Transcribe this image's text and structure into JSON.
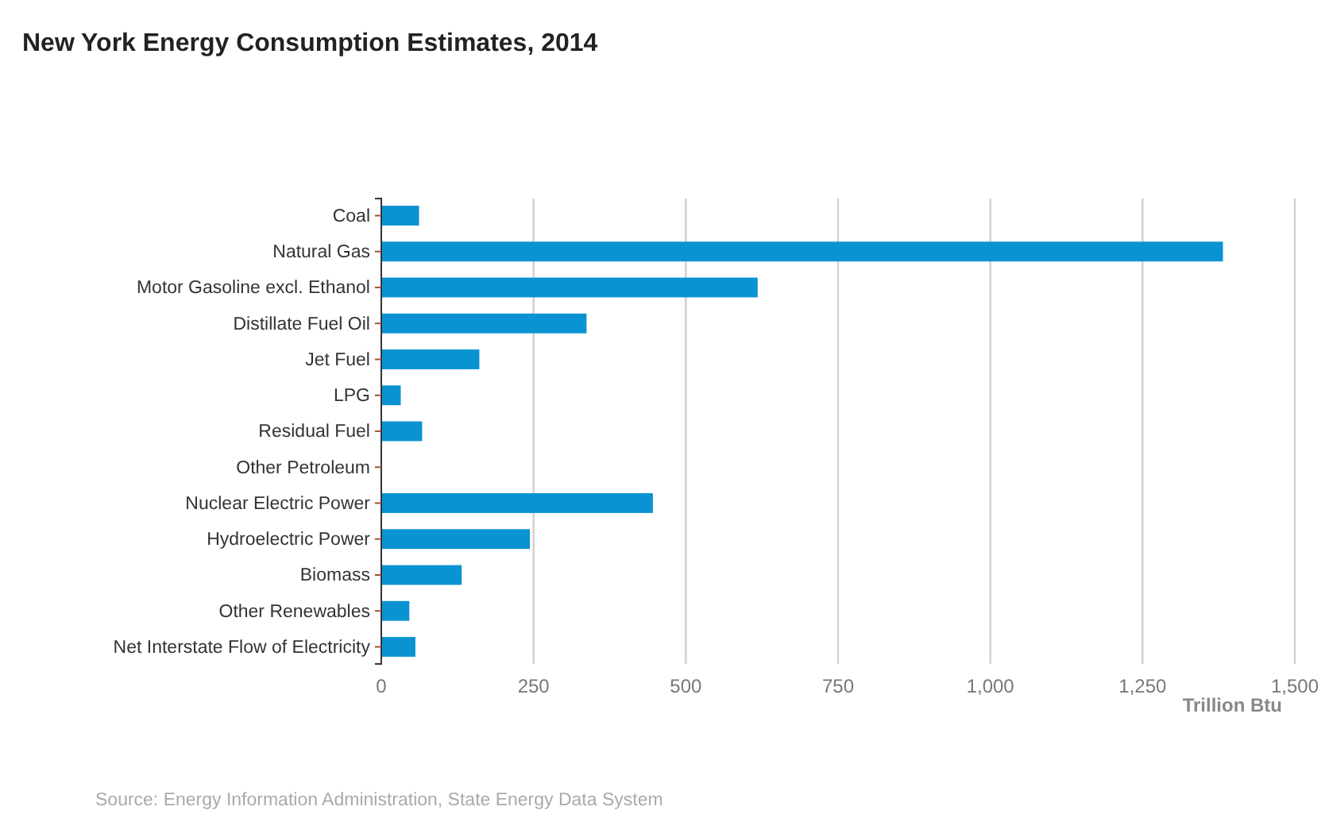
{
  "chart_data": {
    "type": "bar",
    "orientation": "horizontal",
    "title": "New York Energy Consumption Estimates, 2014",
    "xlabel": "Trillion Btu",
    "categories": [
      "Coal",
      "Natural Gas",
      "Motor Gasoline excl. Ethanol",
      "Distillate Fuel Oil",
      "Jet Fuel",
      "LPG",
      "Residual Fuel",
      "Other Petroleum",
      "Nuclear Electric Power",
      "Hydroelectric Power",
      "Biomass",
      "Other Renewables",
      "Net Interstate Flow of Electricity"
    ],
    "values": [
      62,
      1382,
      618,
      337,
      161,
      32,
      67,
      0,
      446,
      244,
      132,
      46,
      56
    ],
    "color": "#0a93d2",
    "xlim": [
      0,
      1500
    ],
    "xticks": [
      0,
      250,
      500,
      750,
      {
        "value": 1000,
        "label": "1,000"
      },
      {
        "value": 1250,
        "label": "1,250"
      },
      {
        "value": 1500,
        "label": "1,500"
      }
    ],
    "grid": "x",
    "annotations": [
      "Source: Energy Information Administration, State Energy Data System"
    ]
  }
}
